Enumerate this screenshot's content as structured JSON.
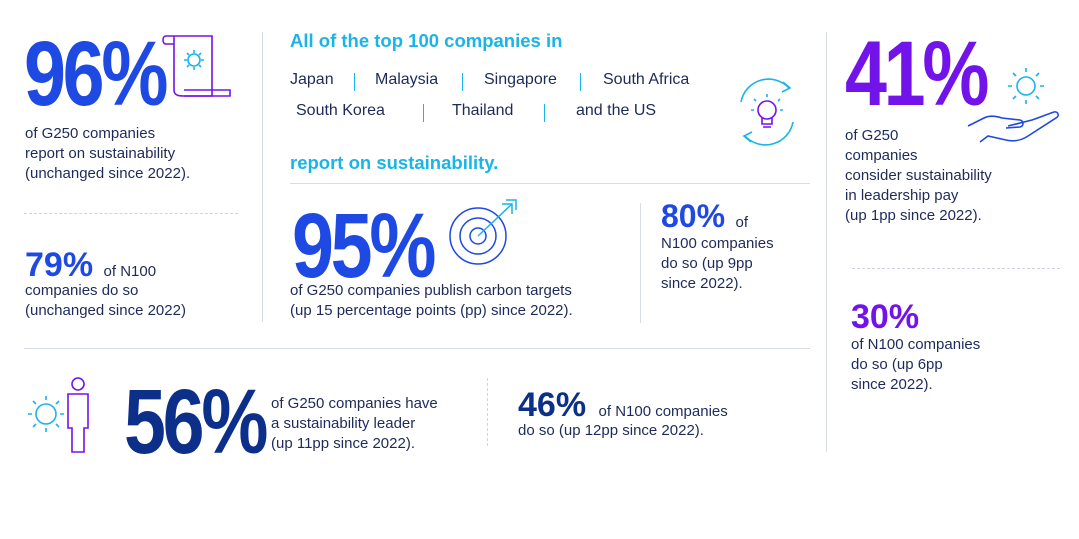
{
  "colors": {
    "blue": "#1e49e2",
    "navy": "#0c2f8a",
    "purple": "#7213ea",
    "cyan": "#1ab4e8",
    "text": "#1e2a5a"
  },
  "stat96": {
    "value": "96%",
    "text": [
      "of G250 companies",
      "report on sustainability",
      "(unchanged since 2022)."
    ]
  },
  "stat79": {
    "value": "79%",
    "suffix": "of N100",
    "text": [
      "companies do so",
      "(unchanged since 2022)"
    ]
  },
  "center": {
    "heading": "All of the top 100 companies in",
    "countries": [
      "Japan",
      "Malaysia",
      "Singapore",
      "South Africa",
      "South Korea",
      "Thailand",
      "and the US"
    ],
    "footer": "report on sustainability."
  },
  "stat95": {
    "value": "95%",
    "text": [
      "of G250 companies publish carbon targets",
      "(up 15 percentage points (pp) since 2022)."
    ]
  },
  "stat80": {
    "value": "80%",
    "suffix": "of",
    "text": [
      "N100 companies",
      "do so (up 9pp",
      "since 2022)."
    ]
  },
  "stat41": {
    "value": "41%",
    "text": [
      "of G250",
      "companies",
      "consider sustainability",
      "in leadership pay",
      "(up 1pp since 2022)."
    ]
  },
  "stat30": {
    "value": "30%",
    "text": [
      "of N100 companies",
      "do so (up 6pp",
      "since 2022)."
    ]
  },
  "stat56": {
    "value": "56%",
    "text": [
      "of G250 companies have",
      "a sustainability leader",
      "(up 11pp since 2022)."
    ]
  },
  "stat46": {
    "value": "46%",
    "suffix": "of N100 companies",
    "text": [
      "do so (up 12pp since 2022)."
    ]
  },
  "icons": [
    "scroll-gear-icon",
    "lightbulb-cycle-icon",
    "target-arrow-icon",
    "hand-gear-icon",
    "person-gear-icon"
  ]
}
